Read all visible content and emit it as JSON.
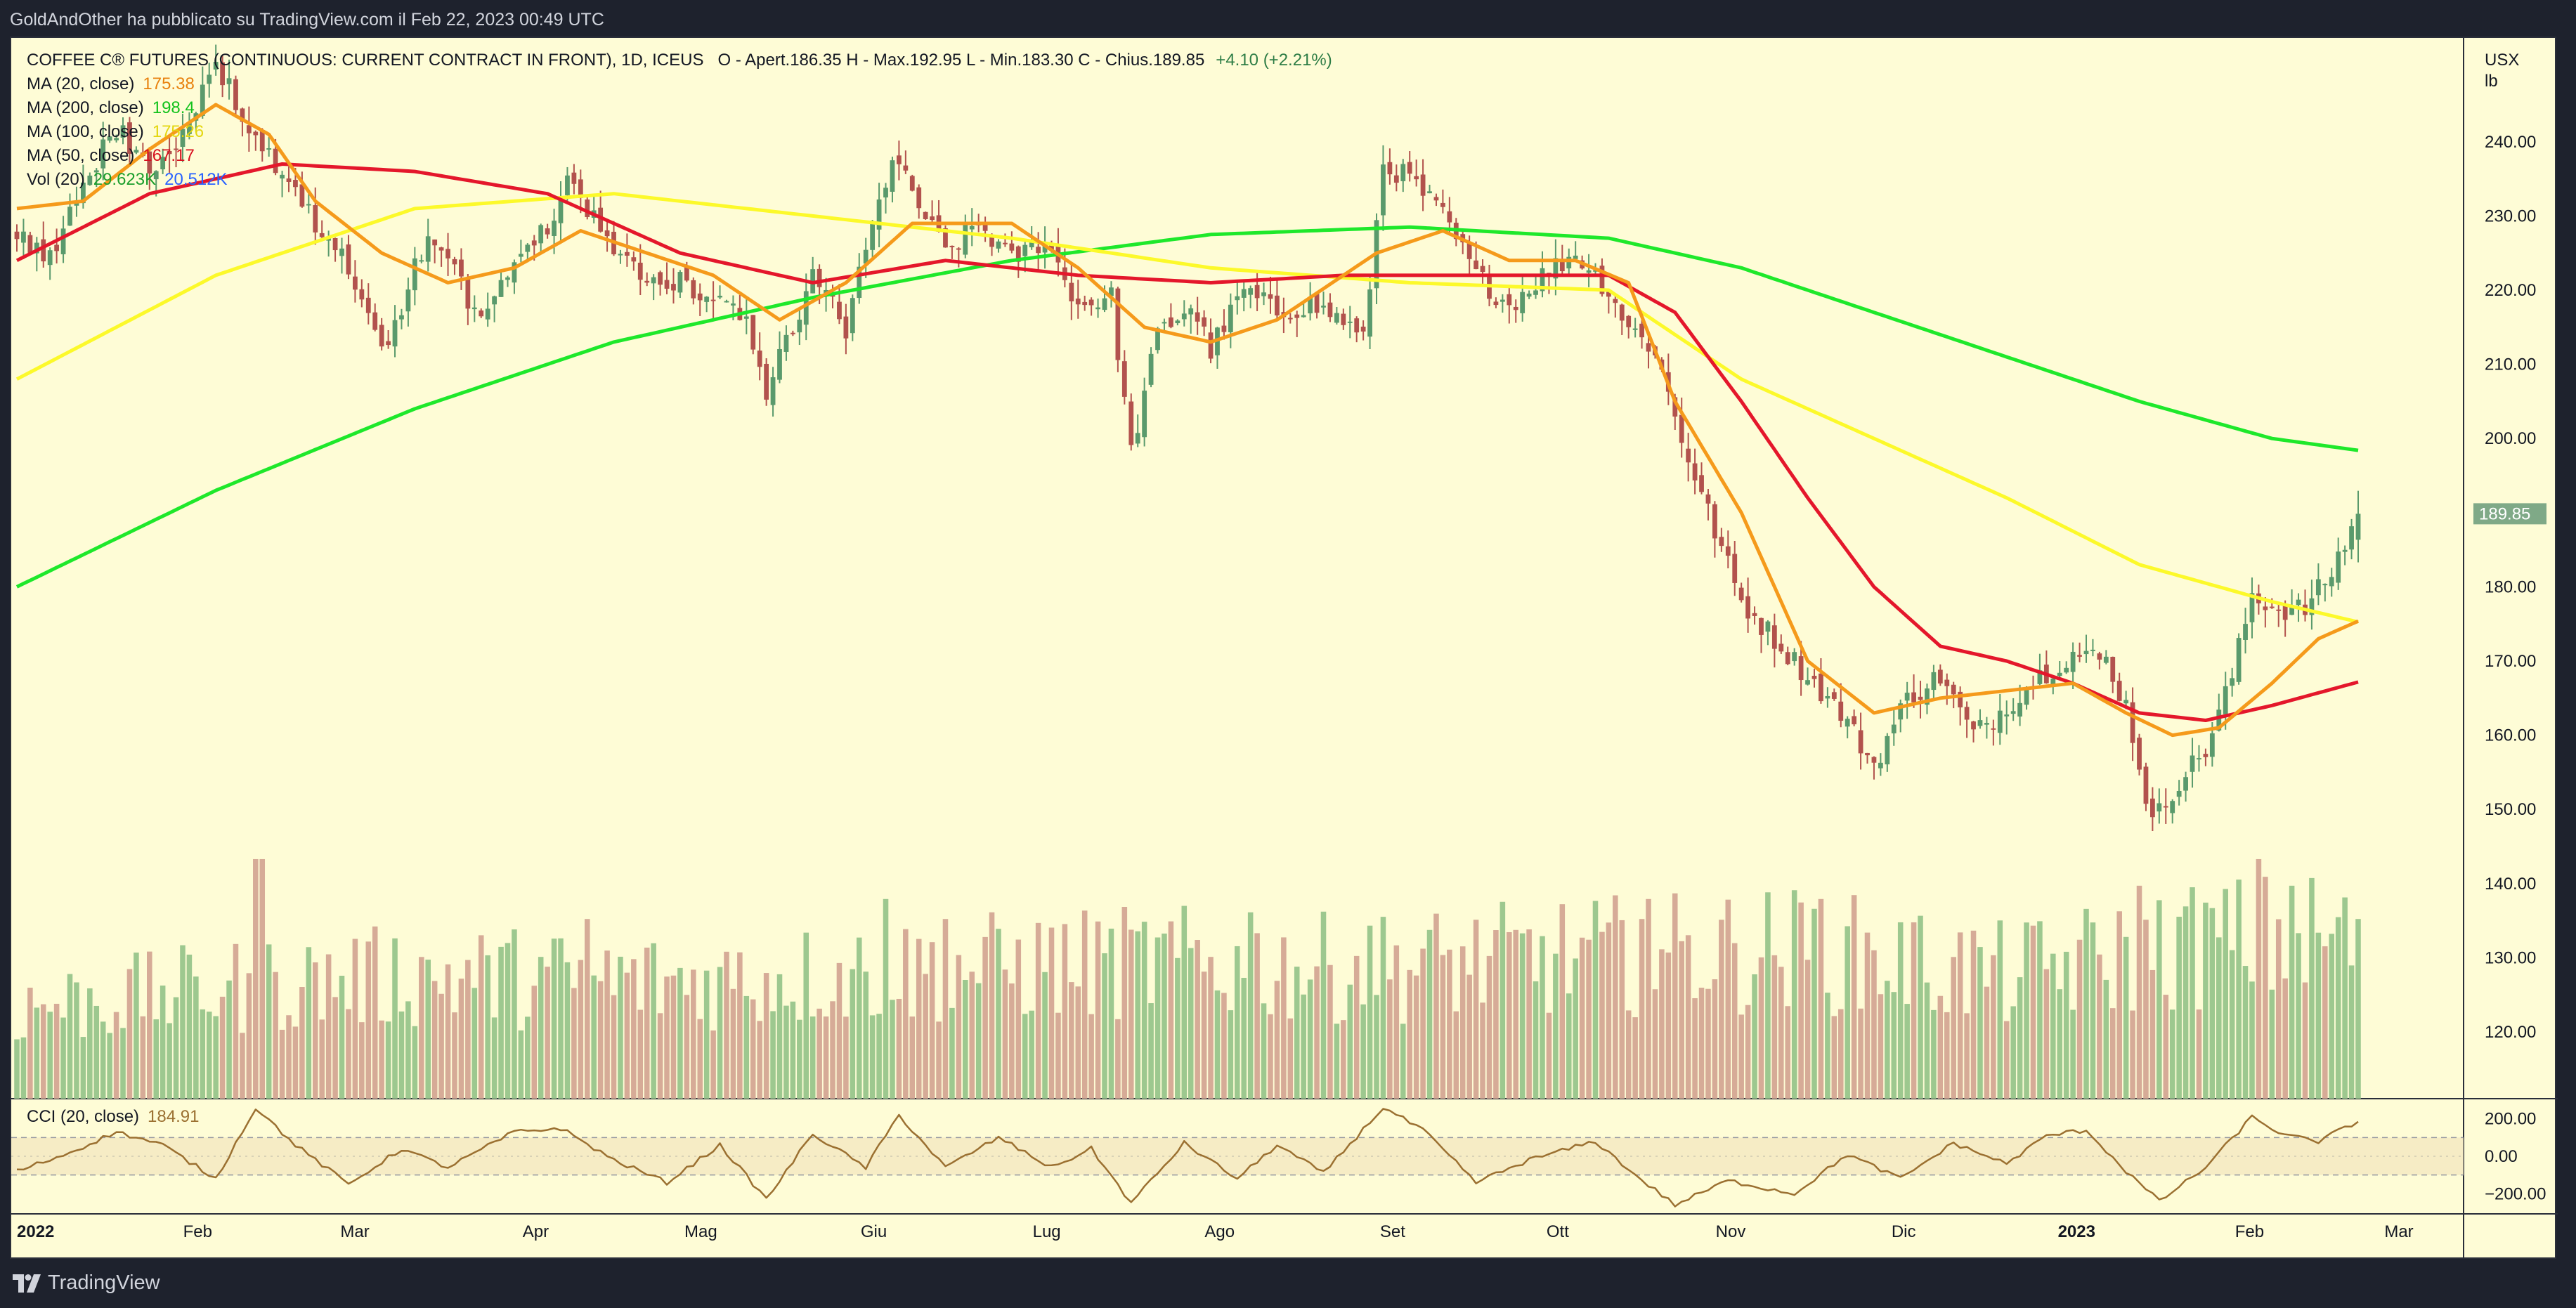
{
  "header": {
    "publisher_line": "GoldAndOther ha pubblicato su TradingView.com il Feb 22, 2023 00:49 UTC"
  },
  "footer": {
    "brand": "TradingView",
    "logo_icon": "tradingview-logo-icon"
  },
  "symbol": {
    "title": "COFFEE C® FUTURES (CONTINUOUS: CURRENT CONTRACT IN FRONT), 1D, ICEUS",
    "ohlc_text": "O - Apert.186.35  H - Max.192.95  L - Min.183.30  C - Chius.189.85",
    "change_text": "+4.10 (+2.21%)",
    "unit_line1": "USX",
    "unit_line2": "lb"
  },
  "colors": {
    "background": "#fefcd6",
    "up_candle": "#5a9a6c",
    "down_candle": "#b2524d",
    "vol_up": "#9dc88f",
    "vol_down": "#d6ab97",
    "ma20": "#f59a1b",
    "ma200": "#1ee82b",
    "ma100": "#fcf92a",
    "ma50": "#e4172b",
    "vol_ma": "#2962ff",
    "cci": "#9b7031",
    "last_price_tag": "#7fa987"
  },
  "chart_data": [
    {
      "type": "candlestick",
      "title": "COFFEE C® FUTURES (CONTINUOUS: CURRENT CONTRACT IN FRONT), 1D, ICEUS",
      "x_axis": {
        "labels": [
          "2022",
          "Feb",
          "Mar",
          "Apr",
          "Mag",
          "Giu",
          "Lug",
          "Ago",
          "Set",
          "Ott",
          "Nov",
          "Dic",
          "2023",
          "Feb",
          "Mar"
        ]
      },
      "y_axis": {
        "unit": "USX/lb",
        "range": [
          111,
          254
        ],
        "ticks": [
          120,
          130,
          140,
          150,
          160,
          170,
          180,
          190,
          200,
          210,
          220,
          230,
          240
        ]
      },
      "last_price": 189.85,
      "close_series_anchors": [
        [
          0,
          227
        ],
        [
          5,
          225
        ],
        [
          10,
          234
        ],
        [
          15,
          242
        ],
        [
          20,
          236
        ],
        [
          25,
          241
        ],
        [
          30,
          250
        ],
        [
          34,
          244
        ],
        [
          38,
          238
        ],
        [
          41,
          236
        ],
        [
          45,
          229
        ],
        [
          50,
          223
        ],
        [
          55,
          212
        ],
        [
          58,
          218
        ],
        [
          62,
          228
        ],
        [
          66,
          222
        ],
        [
          70,
          215
        ],
        [
          75,
          225
        ],
        [
          80,
          229
        ],
        [
          83,
          234
        ],
        [
          86,
          231
        ],
        [
          90,
          226
        ],
        [
          95,
          222
        ],
        [
          100,
          221
        ],
        [
          105,
          218
        ],
        [
          110,
          217
        ],
        [
          113,
          206
        ],
        [
          117,
          215
        ],
        [
          120,
          222
        ],
        [
          125,
          215
        ],
        [
          128,
          225
        ],
        [
          132,
          238
        ],
        [
          135,
          233
        ],
        [
          140,
          225
        ],
        [
          145,
          229
        ],
        [
          150,
          224
        ],
        [
          155,
          227
        ],
        [
          160,
          218
        ],
        [
          165,
          219
        ],
        [
          168,
          198
        ],
        [
          172,
          214
        ],
        [
          177,
          218
        ],
        [
          180,
          212
        ],
        [
          185,
          220
        ],
        [
          190,
          217
        ],
        [
          195,
          218
        ],
        [
          200,
          216
        ],
        [
          203,
          213
        ],
        [
          206,
          237
        ],
        [
          210,
          235
        ],
        [
          215,
          230
        ],
        [
          220,
          222
        ],
        [
          225,
          218
        ],
        [
          230,
          222
        ],
        [
          235,
          225
        ],
        [
          240,
          220
        ],
        [
          243,
          215
        ],
        [
          247,
          212
        ],
        [
          251,
          200
        ],
        [
          255,
          190
        ],
        [
          260,
          178
        ],
        [
          265,
          173
        ],
        [
          270,
          168
        ],
        [
          275,
          163
        ],
        [
          280,
          156
        ],
        [
          285,
          165
        ],
        [
          290,
          168
        ],
        [
          295,
          160
        ],
        [
          300,
          164
        ],
        [
          305,
          168
        ],
        [
          310,
          171
        ],
        [
          315,
          170
        ],
        [
          318,
          164
        ],
        [
          322,
          148
        ],
        [
          326,
          154
        ],
        [
          330,
          158
        ],
        [
          334,
          168
        ],
        [
          337,
          179
        ],
        [
          341,
          177
        ],
        [
          345,
          177
        ],
        [
          349,
          182
        ],
        [
          353,
          189.85
        ]
      ],
      "moving_averages": [
        {
          "name": "MA (20, close)",
          "last_value": 175.38,
          "anchors": [
            [
              0,
              231
            ],
            [
              10,
              232
            ],
            [
              20,
              239
            ],
            [
              30,
              245
            ],
            [
              38,
              241
            ],
            [
              45,
              232
            ],
            [
              55,
              225
            ],
            [
              65,
              221
            ],
            [
              75,
              223
            ],
            [
              85,
              228
            ],
            [
              95,
              225
            ],
            [
              105,
              222
            ],
            [
              115,
              216
            ],
            [
              125,
              221
            ],
            [
              135,
              229
            ],
            [
              150,
              229
            ],
            [
              160,
              223
            ],
            [
              170,
              215
            ],
            [
              180,
              213
            ],
            [
              190,
              216
            ],
            [
              205,
              225
            ],
            [
              215,
              228
            ],
            [
              225,
              224
            ],
            [
              235,
              224
            ],
            [
              243,
              221
            ],
            [
              250,
              205
            ],
            [
              260,
              190
            ],
            [
              270,
              170
            ],
            [
              280,
              163
            ],
            [
              290,
              165
            ],
            [
              300,
              166
            ],
            [
              310,
              167
            ],
            [
              318,
              163
            ],
            [
              325,
              160
            ],
            [
              332,
              161
            ],
            [
              340,
              167
            ],
            [
              347,
              173
            ],
            [
              353,
              175.38
            ]
          ]
        },
        {
          "name": "MA (200, close)",
          "last_value": 198.4,
          "anchors": [
            [
              0,
              180
            ],
            [
              30,
              193
            ],
            [
              60,
              204
            ],
            [
              90,
              213
            ],
            [
              120,
              219
            ],
            [
              150,
              224
            ],
            [
              180,
              227.5
            ],
            [
              210,
              228.5
            ],
            [
              240,
              227
            ],
            [
              260,
              223
            ],
            [
              280,
              217
            ],
            [
              300,
              211
            ],
            [
              320,
              205
            ],
            [
              340,
              200
            ],
            [
              353,
              198.4
            ]
          ]
        },
        {
          "name": "MA (100, close)",
          "last_value": 175.26,
          "anchors": [
            [
              0,
              208
            ],
            [
              30,
              222
            ],
            [
              60,
              231
            ],
            [
              90,
              233
            ],
            [
              120,
              230
            ],
            [
              150,
              227
            ],
            [
              180,
              223
            ],
            [
              210,
              221
            ],
            [
              240,
              220
            ],
            [
              260,
              208
            ],
            [
              280,
              200
            ],
            [
              300,
              192
            ],
            [
              320,
              183
            ],
            [
              340,
              178
            ],
            [
              353,
              175.26
            ]
          ]
        },
        {
          "name": "MA (50, close)",
          "last_value": 167.17,
          "anchors": [
            [
              0,
              224
            ],
            [
              20,
              233
            ],
            [
              40,
              237
            ],
            [
              60,
              236
            ],
            [
              80,
              233
            ],
            [
              100,
              225
            ],
            [
              120,
              221
            ],
            [
              140,
              224
            ],
            [
              160,
              222
            ],
            [
              180,
              221
            ],
            [
              200,
              222
            ],
            [
              220,
              222
            ],
            [
              240,
              222
            ],
            [
              250,
              217
            ],
            [
              260,
              205
            ],
            [
              270,
              192
            ],
            [
              280,
              180
            ],
            [
              290,
              172
            ],
            [
              300,
              170
            ],
            [
              310,
              167
            ],
            [
              320,
              163
            ],
            [
              330,
              162
            ],
            [
              340,
              164
            ],
            [
              353,
              167.17
            ]
          ]
        }
      ]
    },
    {
      "type": "bar",
      "name": "Volume",
      "title": "Vol (20)",
      "legend_values": [
        "29.623K",
        "20.512K"
      ],
      "max_volume_k": 38,
      "base_profile": [
        [
          0,
          14
        ],
        [
          30,
          17
        ],
        [
          60,
          19
        ],
        [
          100,
          18
        ],
        [
          140,
          20
        ],
        [
          170,
          21
        ],
        [
          200,
          20
        ],
        [
          240,
          22
        ],
        [
          270,
          23
        ],
        [
          300,
          19
        ],
        [
          330,
          24
        ],
        [
          353,
          25
        ]
      ],
      "spikes": [
        [
          36,
          36
        ],
        [
          37,
          36
        ],
        [
          86,
          27
        ],
        [
          131,
          30
        ],
        [
          140,
          27
        ],
        [
          186,
          28
        ],
        [
          204,
          26
        ],
        [
          245,
          27
        ],
        [
          246,
          30
        ],
        [
          272,
          30
        ],
        [
          320,
          32
        ],
        [
          338,
          36
        ],
        [
          343,
          32
        ]
      ]
    },
    {
      "type": "line",
      "name": "CCI",
      "title": "CCI (20, close)",
      "last_value": 184.91,
      "y_axis": {
        "ticks": [
          "200.00",
          "0.00",
          "−200.00"
        ],
        "band": [
          100,
          -100
        ]
      },
      "anchors": [
        [
          0,
          -80
        ],
        [
          8,
          20
        ],
        [
          15,
          130
        ],
        [
          22,
          60
        ],
        [
          30,
          -120
        ],
        [
          36,
          260
        ],
        [
          42,
          60
        ],
        [
          50,
          -150
        ],
        [
          58,
          40
        ],
        [
          65,
          -60
        ],
        [
          75,
          130
        ],
        [
          82,
          150
        ],
        [
          90,
          -20
        ],
        [
          98,
          -140
        ],
        [
          106,
          60
        ],
        [
          113,
          -230
        ],
        [
          120,
          120
        ],
        [
          128,
          -60
        ],
        [
          133,
          220
        ],
        [
          140,
          -60
        ],
        [
          148,
          100
        ],
        [
          156,
          -60
        ],
        [
          162,
          40
        ],
        [
          168,
          -250
        ],
        [
          176,
          70
        ],
        [
          184,
          -120
        ],
        [
          190,
          60
        ],
        [
          197,
          -90
        ],
        [
          206,
          260
        ],
        [
          212,
          140
        ],
        [
          220,
          -140
        ],
        [
          228,
          -20
        ],
        [
          238,
          80
        ],
        [
          244,
          -100
        ],
        [
          250,
          -260
        ],
        [
          258,
          -130
        ],
        [
          268,
          -200
        ],
        [
          276,
          10
        ],
        [
          284,
          -120
        ],
        [
          292,
          70
        ],
        [
          300,
          -40
        ],
        [
          306,
          110
        ],
        [
          312,
          140
        ],
        [
          318,
          -80
        ],
        [
          323,
          -240
        ],
        [
          330,
          -60
        ],
        [
          337,
          210
        ],
        [
          342,
          110
        ],
        [
          347,
          80
        ],
        [
          353,
          184.91
        ]
      ]
    }
  ]
}
